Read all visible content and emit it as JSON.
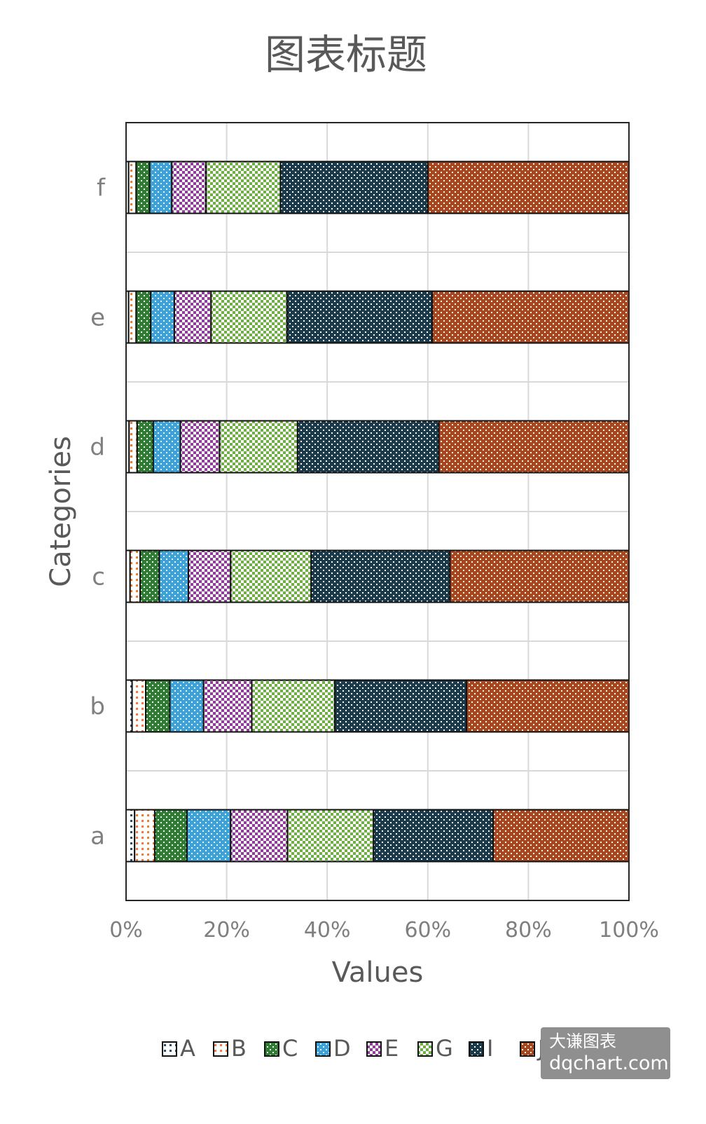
{
  "chart_data": {
    "type": "bar",
    "orientation": "horizontal",
    "stacked": "percent",
    "title": "图表标题",
    "xlabel": "Values",
    "ylabel": "Categories",
    "xlim": [
      0,
      100
    ],
    "x_ticks": [
      "0%",
      "20%",
      "40%",
      "60%",
      "80%",
      "100%"
    ],
    "grid": true,
    "legend_position": "bottom",
    "categories": [
      "a",
      "b",
      "c",
      "d",
      "e",
      "f"
    ],
    "series": [
      {
        "name": "A",
        "color": "#1f4e79",
        "values": [
          1.7,
          1.2,
          0.8,
          0.6,
          0.5,
          0.5
        ]
      },
      {
        "name": "B",
        "color": "#ed7d31",
        "values": [
          4.0,
          2.7,
          2.0,
          1.6,
          1.5,
          1.5
        ]
      },
      {
        "name": "C",
        "color": "#2e7d32",
        "values": [
          6.4,
          4.8,
          3.8,
          3.2,
          2.9,
          2.7
        ]
      },
      {
        "name": "D",
        "color": "#3ba3d9",
        "values": [
          8.7,
          6.7,
          5.8,
          5.4,
          4.7,
          4.4
        ]
      },
      {
        "name": "E",
        "color": "#8e3e96",
        "values": [
          11.3,
          9.6,
          8.4,
          7.8,
          7.3,
          6.8
        ]
      },
      {
        "name": "G",
        "color": "#70ad47",
        "values": [
          17.1,
          16.5,
          16.0,
          15.5,
          15.1,
          14.8
        ]
      },
      {
        "name": "I",
        "color": "#1b3a4b",
        "values": [
          23.8,
          26.2,
          27.6,
          28.1,
          28.9,
          29.3
        ]
      },
      {
        "name": "J",
        "color": "#a9461d",
        "values": [
          27.0,
          32.3,
          35.6,
          37.8,
          39.1,
          40.0
        ]
      }
    ]
  },
  "watermark": {
    "line1": "大谦图表",
    "line2": "dqchart.com"
  }
}
